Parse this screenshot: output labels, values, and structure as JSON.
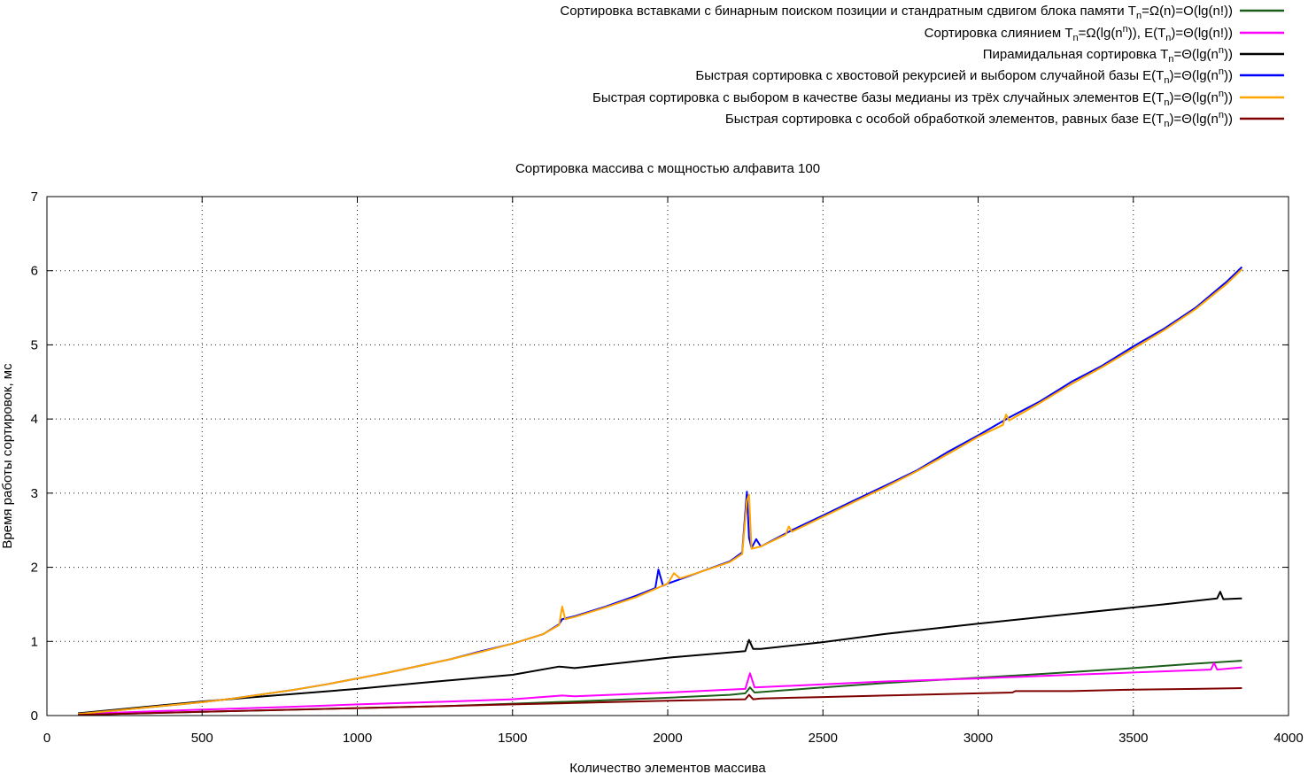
{
  "chart_data": {
    "type": "line",
    "title": "Сортировка массива с мощностью алфавита 100",
    "xlabel": "Количество элементов массива",
    "ylabel": "Время работы сортировок, мс",
    "xlim": [
      0,
      4000
    ],
    "ylim": [
      0,
      7
    ],
    "x_ticks": [
      "0",
      "500",
      "1000",
      "1500",
      "2000",
      "2500",
      "3000",
      "3500",
      "4000"
    ],
    "y_ticks": [
      "0",
      "1",
      "2",
      "3",
      "4",
      "5",
      "6",
      "7"
    ],
    "grid": true,
    "legend_position": "top-right (outside plot)",
    "series": [
      {
        "name": "Сортировка вставками с бинарным поиском позиции и стандратным сдвигом блока памяти T_n=Ω(n)=O(lg(n!))",
        "legend": {
          "pre": "Сортировка вставками с бинарным поиском позиции и стандратным сдвигом блока памяти T",
          "s1": "n",
          "mid": "=Ω(n)=O(lg(n!))"
        },
        "color": "#1a5e1a",
        "x": [
          100,
          300,
          500,
          700,
          1000,
          1300,
          1500,
          1700,
          2000,
          2200,
          2250,
          2265,
          2280,
          2500,
          2700,
          3000,
          3200,
          3500,
          3700,
          3850
        ],
        "y": [
          0.01,
          0.03,
          0.05,
          0.07,
          0.1,
          0.13,
          0.16,
          0.19,
          0.24,
          0.28,
          0.3,
          0.38,
          0.31,
          0.38,
          0.44,
          0.51,
          0.56,
          0.64,
          0.7,
          0.74
        ]
      },
      {
        "name": "Сортировка слиянием T_n=Ω(lg(n^n)), E(T_n)=Θ(lg(n!))",
        "legend": {
          "pre": "Сортировка слиянием T",
          "s1": "n",
          "mid": "=Ω(lg(n",
          "sup": "n",
          "mid2": ")), E(T",
          "s2": "n",
          "post": ")=Θ(lg(n!))"
        },
        "color": "#ff00ff",
        "x": [
          100,
          300,
          500,
          800,
          1000,
          1300,
          1500,
          1660,
          1700,
          2000,
          2250,
          2265,
          2280,
          2500,
          2700,
          3000,
          3300,
          3500,
          3750,
          3760,
          3770,
          3850
        ],
        "y": [
          0.02,
          0.05,
          0.08,
          0.12,
          0.15,
          0.19,
          0.22,
          0.27,
          0.26,
          0.31,
          0.36,
          0.57,
          0.38,
          0.42,
          0.46,
          0.5,
          0.55,
          0.58,
          0.62,
          0.71,
          0.62,
          0.65
        ]
      },
      {
        "name": "Пирамидальная сортировка T_n=Θ(lg(n^n))",
        "legend": {
          "pre": "Пирамидальная сортировка T",
          "s1": "n",
          "mid": "=Θ(lg(n",
          "sup": "n",
          "post": "))"
        },
        "color": "#000000",
        "x": [
          100,
          300,
          500,
          700,
          1000,
          1200,
          1500,
          1650,
          1700,
          2000,
          2250,
          2262,
          2275,
          2300,
          2500,
          2700,
          3000,
          3300,
          3600,
          3770,
          3780,
          3790,
          3850
        ],
        "y": [
          0.03,
          0.11,
          0.19,
          0.26,
          0.36,
          0.44,
          0.55,
          0.66,
          0.64,
          0.78,
          0.87,
          1.02,
          0.9,
          0.9,
          0.99,
          1.1,
          1.24,
          1.37,
          1.5,
          1.58,
          1.67,
          1.57,
          1.58
        ]
      },
      {
        "name": "Быстрая сортировка с хвостовой рекурсией и выбором случайной базы E(T_n)=Θ(lg(n^n))",
        "legend": {
          "pre": "Быстрая сортировка с хвостовой рекурсией и выбором случайной базы E(T",
          "s1": "n",
          "mid": ")=Θ(lg(n",
          "sup": "n",
          "post": "))"
        },
        "color": "#0000ff",
        "x": [
          100,
          200,
          300,
          400,
          500,
          600,
          700,
          800,
          900,
          1000,
          1100,
          1200,
          1300,
          1400,
          1500,
          1600,
          1650,
          1660,
          1700,
          1800,
          1900,
          1960,
          1970,
          1985,
          2000,
          2100,
          2200,
          2240,
          2255,
          2262,
          2270,
          2285,
          2300,
          2400,
          2500,
          2600,
          2700,
          2800,
          2900,
          3000,
          3100,
          3200,
          3300,
          3400,
          3500,
          3600,
          3700,
          3800,
          3850
        ],
        "y": [
          0.02,
          0.06,
          0.1,
          0.14,
          0.18,
          0.23,
          0.29,
          0.35,
          0.42,
          0.5,
          0.58,
          0.67,
          0.76,
          0.87,
          0.97,
          1.1,
          1.23,
          1.3,
          1.34,
          1.47,
          1.62,
          1.72,
          1.97,
          1.75,
          1.78,
          1.93,
          2.08,
          2.2,
          3.02,
          2.4,
          2.26,
          2.38,
          2.28,
          2.5,
          2.7,
          2.9,
          3.1,
          3.3,
          3.55,
          3.78,
          4.02,
          4.24,
          4.5,
          4.72,
          4.98,
          5.22,
          5.5,
          5.85,
          6.05
        ]
      },
      {
        "name": "Быстрая сортировка с выбором в качестве базы медианы из трёх случайных элементов E(T_n)=Θ(lg(n^n))",
        "legend": {
          "pre": "Быстрая сортировка с выбором в качестве базы медианы из трёх случайных элементов E(T",
          "s1": "n",
          "mid": ")=Θ(lg(n",
          "sup": "n",
          "post": "))"
        },
        "color": "#ffa500",
        "x": [
          100,
          200,
          300,
          400,
          500,
          600,
          700,
          800,
          900,
          1000,
          1100,
          1200,
          1300,
          1400,
          1500,
          1600,
          1650,
          1660,
          1670,
          1700,
          1800,
          1900,
          2000,
          2020,
          2040,
          2100,
          2200,
          2240,
          2255,
          2262,
          2270,
          2300,
          2380,
          2390,
          2400,
          2500,
          2600,
          2700,
          2800,
          2900,
          3000,
          3080,
          3090,
          3100,
          3200,
          3300,
          3400,
          3500,
          3600,
          3700,
          3800,
          3850
        ],
        "y": [
          0.02,
          0.06,
          0.1,
          0.14,
          0.18,
          0.23,
          0.29,
          0.35,
          0.42,
          0.5,
          0.58,
          0.67,
          0.76,
          0.86,
          0.97,
          1.1,
          1.22,
          1.47,
          1.3,
          1.33,
          1.46,
          1.6,
          1.78,
          1.92,
          1.85,
          1.93,
          2.07,
          2.18,
          2.9,
          2.98,
          2.25,
          2.28,
          2.44,
          2.55,
          2.48,
          2.68,
          2.88,
          3.08,
          3.29,
          3.52,
          3.76,
          3.92,
          4.06,
          3.98,
          4.22,
          4.47,
          4.7,
          4.95,
          5.2,
          5.48,
          5.82,
          6.02
        ]
      },
      {
        "name": "Быстрая сортировка с особой обработкой элементов, равных базе E(T_n)=Θ(lg(n^n))",
        "legend": {
          "pre": "Быстрая сортировка с особой обработкой элементов, равных базе E(T",
          "s1": "n",
          "mid": ")=Θ(lg(n",
          "sup": "n",
          "post": "))"
        },
        "color": "#800000",
        "x": [
          100,
          300,
          500,
          700,
          1000,
          1300,
          1500,
          1700,
          2000,
          2250,
          2262,
          2275,
          2300,
          2500,
          2700,
          3000,
          3110,
          3120,
          3300,
          3500,
          3700,
          3850
        ],
        "y": [
          0.01,
          0.03,
          0.05,
          0.07,
          0.1,
          0.13,
          0.15,
          0.17,
          0.2,
          0.22,
          0.28,
          0.22,
          0.23,
          0.25,
          0.27,
          0.3,
          0.31,
          0.33,
          0.33,
          0.35,
          0.36,
          0.37
        ]
      }
    ]
  }
}
